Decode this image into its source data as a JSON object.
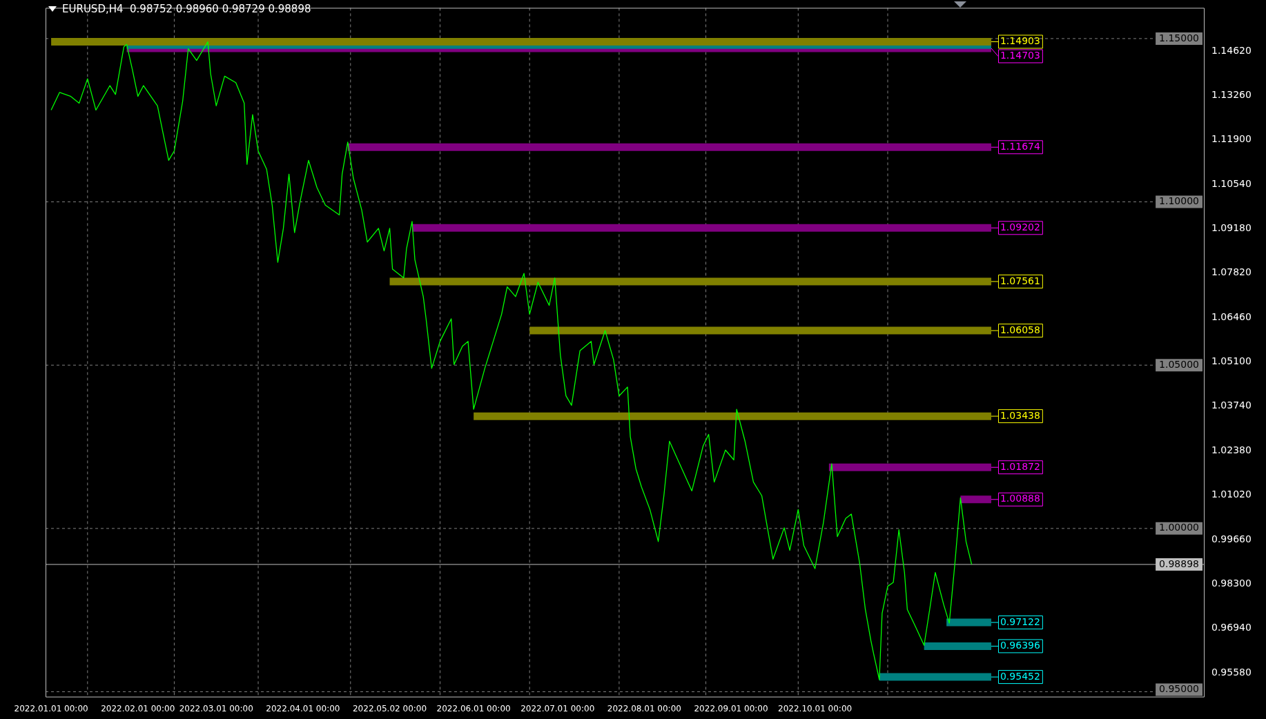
{
  "chart_data": {
    "type": "line",
    "title": "EURUSD,H4  0.98752 0.98960 0.98729 0.98898",
    "marker": "none",
    "legend": false,
    "grid": false,
    "xlim": [
      "2021-12-30",
      "2023-02-17"
    ],
    "xticks": [
      {
        "value": "2022-01-01",
        "label": "2022.01.01 00:00"
      },
      {
        "value": "2022-02-01",
        "label": "2022.02.01 00:00"
      },
      {
        "value": "2022-03-01",
        "label": "2022.03.01 00:00"
      },
      {
        "value": "2022-04-01",
        "label": "2022.04.01 00:00"
      },
      {
        "value": "2022-05-02",
        "label": "2022.05.02 00:00"
      },
      {
        "value": "2022-06-01",
        "label": "2022.06.01 00:00"
      },
      {
        "value": "2022-07-01",
        "label": "2022.07.01 00:00"
      },
      {
        "value": "2022-08-01",
        "label": "2022.08.01 00:00"
      },
      {
        "value": "2022-09-01",
        "label": "2022.09.01 00:00"
      },
      {
        "value": "2022-10-01",
        "label": "2022.10.01 00:00"
      }
    ],
    "ylim": [
      0.9485,
      1.1594
    ],
    "yticks": [
      {
        "value": 1.1462,
        "label": "1.14620"
      },
      {
        "value": 1.1326,
        "label": "1.13260"
      },
      {
        "value": 1.119,
        "label": "1.11900"
      },
      {
        "value": 1.1054,
        "label": "1.10540"
      },
      {
        "value": 1.0918,
        "label": "1.09180"
      },
      {
        "value": 1.0782,
        "label": "1.07820"
      },
      {
        "value": 1.0646,
        "label": "1.06460"
      },
      {
        "value": 1.051,
        "label": "1.05100"
      },
      {
        "value": 1.0374,
        "label": "1.03740"
      },
      {
        "value": 1.0238,
        "label": "1.02380"
      },
      {
        "value": 1.0102,
        "label": "1.01020"
      },
      {
        "value": 0.9966,
        "label": "0.99660"
      },
      {
        "value": 0.983,
        "label": "0.98300"
      },
      {
        "value": 0.9694,
        "label": "0.96940"
      },
      {
        "value": 0.9558,
        "label": "0.95580"
      }
    ],
    "x": [
      "2022-01-01",
      "2022-01-04",
      "2022-01-08",
      "2022-01-11",
      "2022-01-14",
      "2022-01-17",
      "2022-01-22",
      "2022-01-24",
      "2022-01-27",
      "2022-01-28",
      "2022-01-30",
      "2022-02-01",
      "2022-02-03",
      "2022-02-08",
      "2022-02-10",
      "2022-02-12",
      "2022-02-14",
      "2022-02-17",
      "2022-02-19",
      "2022-02-22",
      "2022-02-26",
      "2022-02-27",
      "2022-03-01",
      "2022-03-04",
      "2022-03-08",
      "2022-03-11",
      "2022-03-12",
      "2022-03-14",
      "2022-03-16",
      "2022-03-19",
      "2022-03-21",
      "2022-03-23",
      "2022-03-25",
      "2022-03-27",
      "2022-03-29",
      "2022-03-31",
      "2022-04-03",
      "2022-04-06",
      "2022-04-09",
      "2022-04-14",
      "2022-04-15",
      "2022-04-17",
      "2022-04-19",
      "2022-04-22",
      "2022-04-24",
      "2022-04-28",
      "2022-04-30",
      "2022-05-02",
      "2022-05-03",
      "2022-05-07",
      "2022-05-08",
      "2022-05-10",
      "2022-05-11",
      "2022-05-14",
      "2022-05-15",
      "2022-05-17",
      "2022-05-20",
      "2022-05-24",
      "2022-05-25",
      "2022-05-28",
      "2022-05-30",
      "2022-06-01",
      "2022-06-05",
      "2022-06-08",
      "2022-06-11",
      "2022-06-13",
      "2022-06-16",
      "2022-06-19",
      "2022-06-21",
      "2022-06-24",
      "2022-06-28",
      "2022-06-30",
      "2022-07-02",
      "2022-07-04",
      "2022-07-06",
      "2022-07-09",
      "2022-07-13",
      "2022-07-14",
      "2022-07-18",
      "2022-07-21",
      "2022-07-23",
      "2022-07-26",
      "2022-07-27",
      "2022-07-29",
      "2022-07-31",
      "2022-08-03",
      "2022-08-06",
      "2022-08-08",
      "2022-08-10",
      "2022-08-13",
      "2022-08-18",
      "2022-08-22",
      "2022-08-24",
      "2022-08-26",
      "2022-08-30",
      "2022-09-02",
      "2022-09-03",
      "2022-09-06",
      "2022-09-09",
      "2022-09-12",
      "2022-09-14",
      "2022-09-16",
      "2022-09-20",
      "2022-09-22",
      "2022-09-25",
      "2022-09-27",
      "2022-10-01",
      "2022-10-04",
      "2022-10-07",
      "2022-10-09",
      "2022-10-12",
      "2022-10-14",
      "2022-10-17",
      "2022-10-19",
      "2022-10-21",
      "2022-10-22",
      "2022-10-24",
      "2022-10-25",
      "2022-10-27",
      "2022-10-29",
      "2022-10-31",
      "2022-11-02",
      "2022-11-03",
      "2022-11-06",
      "2022-11-09",
      "2022-11-11",
      "2022-11-13",
      "2022-11-16",
      "2022-11-18",
      "2022-11-20",
      "2022-11-22",
      "2022-11-24",
      "2022-11-26"
    ],
    "series": [
      {
        "color": "#00ff00",
        "values": [
          1.1281,
          1.1335,
          1.1323,
          1.1302,
          1.1377,
          1.1281,
          1.1356,
          1.1329,
          1.1475,
          1.1482,
          1.1406,
          1.1323,
          1.1356,
          1.1294,
          1.121,
          1.1127,
          1.1156,
          1.1308,
          1.1469,
          1.1433,
          1.149,
          1.1392,
          1.1294,
          1.1385,
          1.1365,
          1.1302,
          1.1115,
          1.1267,
          1.1156,
          1.11,
          1.099,
          1.0815,
          1.0919,
          1.1085,
          1.0906,
          1.1002,
          1.1127,
          1.1044,
          1.099,
          1.096,
          1.1085,
          1.1183,
          1.1073,
          1.0975,
          1.0877,
          1.0919,
          1.085,
          1.0919,
          1.0794,
          1.0767,
          1.0856,
          1.094,
          1.0823,
          1.071,
          1.0642,
          1.049,
          1.0573,
          1.0642,
          1.0502,
          1.0558,
          1.0573,
          1.0365,
          1.049,
          1.0573,
          1.0656,
          1.074,
          1.071,
          1.0781,
          1.0656,
          1.0754,
          1.0683,
          1.0767,
          1.0531,
          1.0406,
          1.0377,
          1.0544,
          1.0573,
          1.0502,
          1.0606,
          1.0517,
          1.0406,
          1.0433,
          1.0281,
          1.0183,
          1.0127,
          1.0058,
          0.996,
          1.01,
          1.0267,
          1.021,
          1.0115,
          1.0252,
          1.0288,
          1.0142,
          1.024,
          1.021,
          1.0365,
          1.0267,
          1.0142,
          1.01,
          1.0002,
          0.9906,
          1.0002,
          0.9933,
          1.0058,
          0.9948,
          0.9877,
          1.0017,
          1.0198,
          0.9975,
          1.0031,
          1.0044,
          0.9892,
          0.9752,
          0.9656,
          0.9615,
          0.9537,
          0.974,
          0.9823,
          0.9835,
          0.9996,
          0.9865,
          0.9752,
          0.9698,
          0.9642,
          0.9752,
          0.9865,
          0.9767,
          0.971,
          0.9892,
          1.0094,
          0.996,
          0.989
        ]
      },
      {
        "color": "#808000",
        "x": [
          "2022-01-01",
          "2022-12-03"
        ],
        "values": [
          1.14903,
          1.14903
        ],
        "value_labels": [
          null,
          "1.14903"
        ]
      },
      {
        "color": "#008080",
        "x": [
          "2022-01-28",
          "2022-12-03"
        ],
        "values": [
          1.148,
          1.148
        ]
      },
      {
        "color": "#800080",
        "x": [
          "2022-01-28",
          "2022-12-03"
        ],
        "values": [
          1.14703,
          1.14703
        ],
        "value_labels": [
          null,
          "1.14703"
        ]
      },
      {
        "color": "#800080",
        "x": [
          "2022-04-17",
          "2022-12-03"
        ],
        "values": [
          1.11674,
          1.11674
        ],
        "value_labels": [
          null,
          "1.11674"
        ]
      },
      {
        "color": "#800080",
        "x": [
          "2022-05-10",
          "2022-12-03"
        ],
        "values": [
          1.09202,
          1.09202
        ],
        "value_labels": [
          null,
          "1.09202"
        ]
      },
      {
        "color": "#808000",
        "x": [
          "2022-05-02",
          "2022-12-03"
        ],
        "values": [
          1.07561,
          1.07561
        ],
        "value_labels": [
          null,
          "1.07561"
        ]
      },
      {
        "color": "#808000",
        "x": [
          "2022-06-21",
          "2022-12-03"
        ],
        "values": [
          1.06058,
          1.06058
        ],
        "value_labels": [
          null,
          "1.06058"
        ]
      },
      {
        "color": "#808000",
        "x": [
          "2022-06-01",
          "2022-12-03"
        ],
        "values": [
          1.03438,
          1.03438
        ],
        "value_labels": [
          null,
          "1.03438"
        ]
      },
      {
        "color": "#800080",
        "x": [
          "2022-10-06",
          "2022-12-03"
        ],
        "values": [
          1.01872,
          1.01872
        ],
        "value_labels": [
          null,
          "1.01872"
        ]
      },
      {
        "color": "#800080",
        "x": [
          "2022-11-22",
          "2022-12-03"
        ],
        "values": [
          1.00888,
          1.00888
        ],
        "value_labels": [
          null,
          "1.00888"
        ]
      },
      {
        "color": "#008080",
        "x": [
          "2022-11-17",
          "2022-12-03"
        ],
        "values": [
          0.97122,
          0.97122
        ],
        "value_labels": [
          null,
          "0.97122"
        ]
      },
      {
        "color": "#008080",
        "x": [
          "2022-11-09",
          "2022-12-03"
        ],
        "values": [
          0.96396,
          0.96396
        ],
        "value_labels": [
          null,
          "0.96396"
        ]
      },
      {
        "color": "#008080",
        "x": [
          "2022-10-24",
          "2022-12-03"
        ],
        "values": [
          0.95452,
          0.95452
        ],
        "value_labels": [
          null,
          "0.95452"
        ]
      }
    ],
    "ref_lines": [
      {
        "axis": "y",
        "value": 1.15,
        "label": "1.15000",
        "color": "#808080",
        "line_style": "dashed"
      },
      {
        "axis": "y",
        "value": 1.1,
        "label": "1.10000",
        "color": "#808080",
        "line_style": "dashed"
      },
      {
        "axis": "y",
        "value": 1.05,
        "label": "1.05000",
        "color": "#808080",
        "line_style": "dashed"
      },
      {
        "axis": "y",
        "value": 1.0,
        "label": "1.00000",
        "color": "#808080",
        "line_style": "dashed"
      },
      {
        "axis": "y",
        "value": 0.95,
        "label": "0.95000",
        "color": "#808080",
        "line_style": "dashed"
      },
      {
        "axis": "y",
        "value": 0.98898,
        "label": "0.98898",
        "color": "#c0c0c0",
        "line_style": "solid"
      },
      {
        "axis": "x",
        "value": "2022-01-14",
        "color": "#808080",
        "line_style": "dashed"
      },
      {
        "axis": "x",
        "value": "2022-02-14",
        "color": "#808080",
        "line_style": "dashed"
      },
      {
        "axis": "x",
        "value": "2022-03-16",
        "color": "#808080",
        "line_style": "dashed"
      },
      {
        "axis": "x",
        "value": "2022-04-18",
        "color": "#808080",
        "line_style": "dashed"
      },
      {
        "axis": "x",
        "value": "2022-05-20",
        "color": "#808080",
        "line_style": "dashed"
      },
      {
        "axis": "x",
        "value": "2022-06-21",
        "color": "#808080",
        "line_style": "dashed"
      },
      {
        "axis": "x",
        "value": "2022-07-23",
        "color": "#808080",
        "line_style": "dashed"
      },
      {
        "axis": "x",
        "value": "2022-08-23",
        "color": "#808080",
        "line_style": "dashed"
      },
      {
        "axis": "x",
        "value": "2022-09-25",
        "color": "#808080",
        "line_style": "dashed"
      },
      {
        "axis": "x",
        "value": "2022-10-27",
        "color": "#808080",
        "line_style": "dashed"
      }
    ]
  }
}
